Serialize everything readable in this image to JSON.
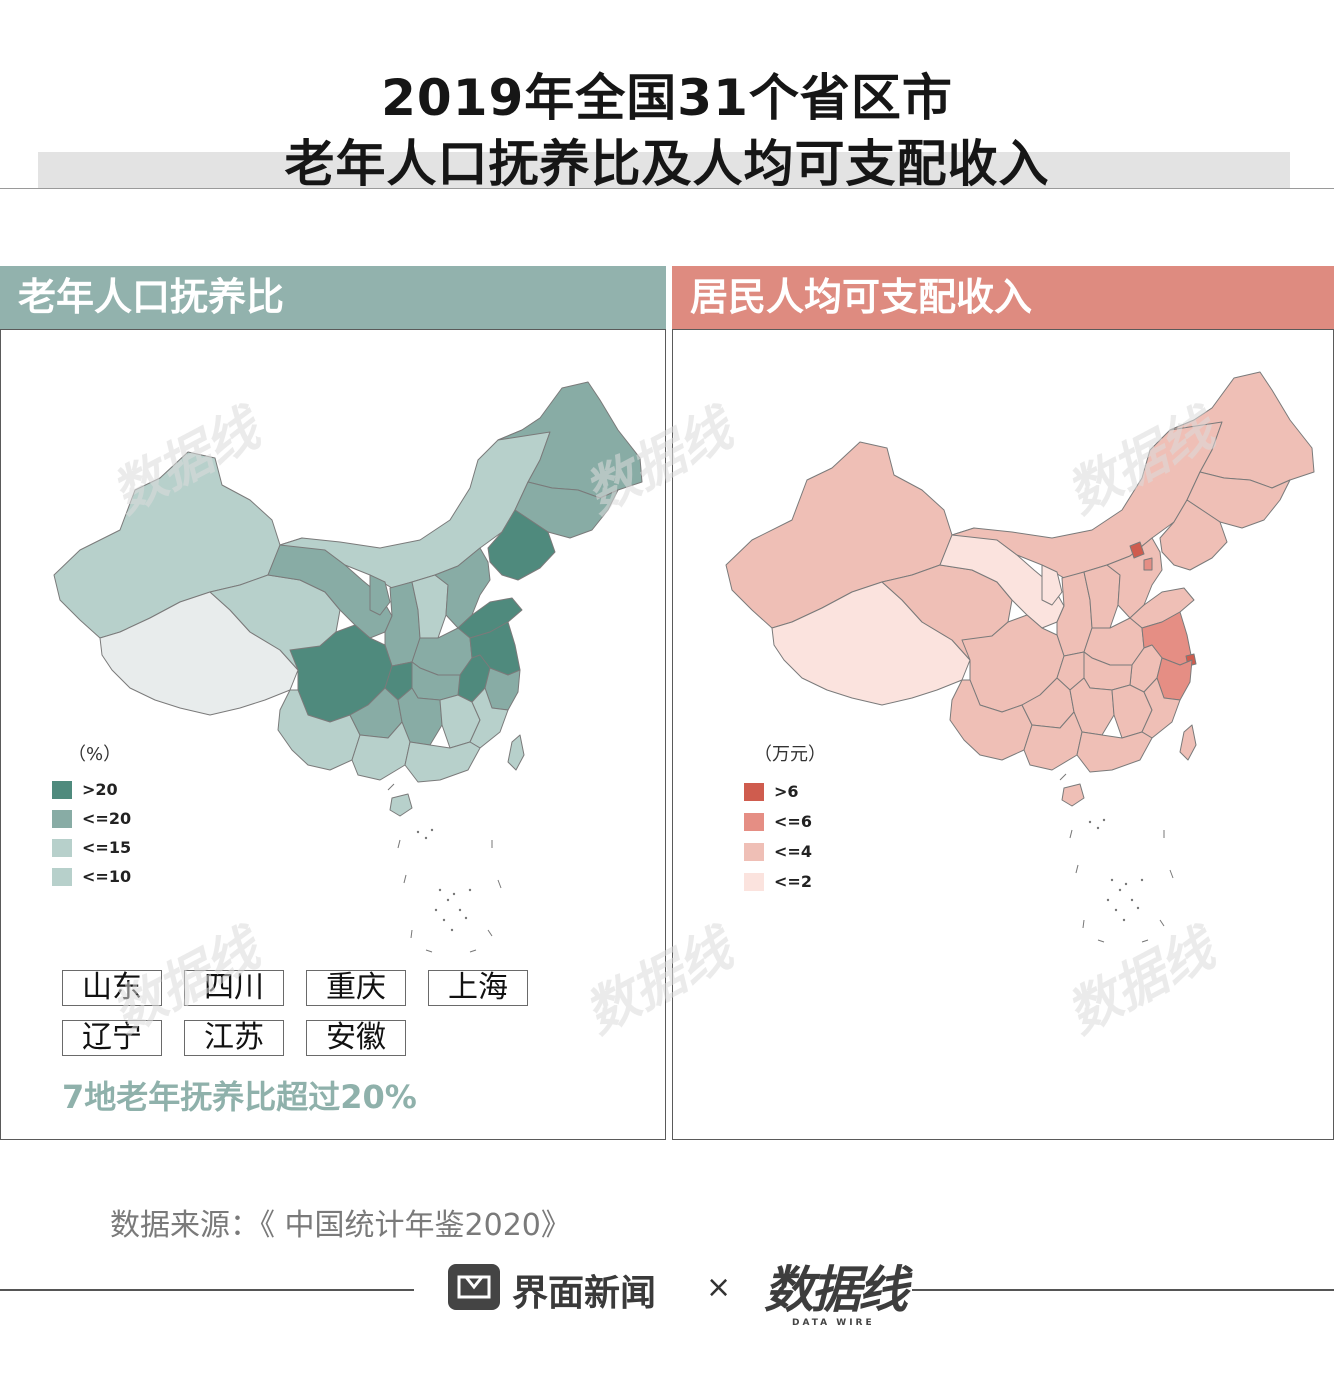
{
  "title": {
    "line1": "2019年全国31个省区市",
    "line2": "老年人口抚养比及人均可支配收入"
  },
  "colors": {
    "teal_header": "#92b2ad",
    "salmon_header": "#de8b80",
    "teal_levels": [
      "#4f8a7d",
      "#88aca5",
      "#b7d0cb",
      "#e8ecec"
    ],
    "salmon_levels": [
      "#cf5c4e",
      "#e58e84",
      "#efbfb6",
      "#fbe3de"
    ],
    "note_color": "#8fb1ab"
  },
  "left_panel": {
    "header": "老年人口抚养比",
    "legend_unit": "（%）",
    "legend": [
      {
        "label": ">20",
        "color": "#4f8a7d"
      },
      {
        "label": "<=20",
        "color": "#88aca5"
      },
      {
        "label": "<=15",
        "color": "#b7d0cb"
      },
      {
        "label": "<=10",
        "color": "#b7d0cb"
      }
    ],
    "tags_row1": [
      "山东",
      "四川",
      "重庆",
      "上海"
    ],
    "tags_row2": [
      "辽宁",
      "江苏",
      "安徽"
    ],
    "note": "7地老年抚养比超过20%"
  },
  "right_panel": {
    "header": "居民人均可支配收入",
    "legend_unit": "（万元）",
    "legend": [
      {
        "label": ">6",
        "color": "#cf5c4e"
      },
      {
        "label": "<=6",
        "color": "#e58e84"
      },
      {
        "label": "<=4",
        "color": "#efbfb6"
      },
      {
        "label": "<=2",
        "color": "#fbe3de"
      }
    ]
  },
  "source": "数据来源：《 中国统计年鉴2020》",
  "footer": {
    "brand": "界面新闻",
    "times": "×",
    "logo": "数据线",
    "logo_sub": "DATA WIRE"
  },
  "watermark": "数据线"
}
